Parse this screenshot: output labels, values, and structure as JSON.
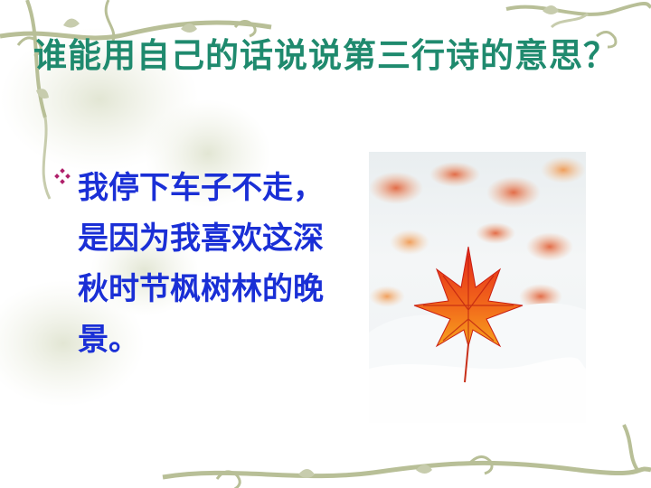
{
  "slide": {
    "title": "谁能用自己的话说说第三行诗的意思？",
    "bullet_text": "我停下车子不走，是因为我喜欢这深秋时节枫树林的晚景。",
    "image_description": "red maple leaf on snow",
    "colors": {
      "title": "#1f8a6e",
      "bullet_text": "#1a2fd6",
      "bullet_marker": "#b0206a",
      "vine": "#b8bf97"
    }
  }
}
